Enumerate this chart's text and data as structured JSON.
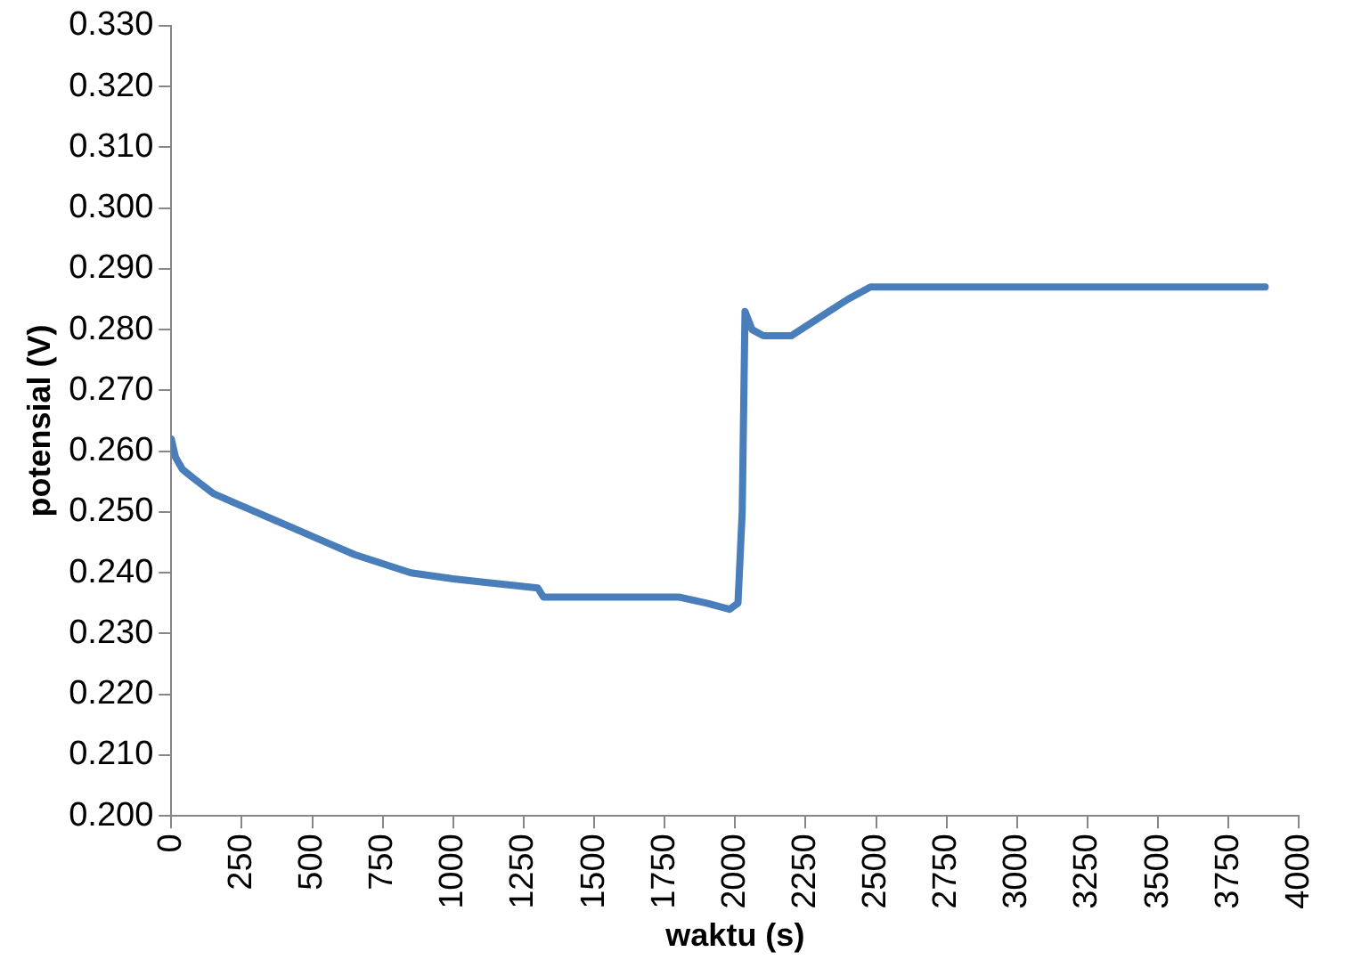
{
  "chart_data": {
    "type": "line",
    "xlabel": "waktu (s)",
    "ylabel": "potensial (V)",
    "series": [
      {
        "color": "#4a7ebb",
        "x": [
          0,
          15,
          40,
          80,
          150,
          250,
          350,
          450,
          550,
          650,
          750,
          850,
          1000,
          1100,
          1300,
          1320,
          1800,
          1900,
          1980,
          2010,
          2025,
          2035,
          2060,
          2100,
          2200,
          2300,
          2400,
          2480,
          3880
        ],
        "values": [
          0.262,
          0.259,
          0.257,
          0.2555,
          0.253,
          0.251,
          0.249,
          0.247,
          0.245,
          0.243,
          0.2415,
          0.24,
          0.239,
          0.2385,
          0.2375,
          0.236,
          0.236,
          0.235,
          0.234,
          0.235,
          0.25,
          0.283,
          0.28,
          0.279,
          0.279,
          0.282,
          0.285,
          0.287,
          0.287
        ]
      }
    ],
    "xlim": [
      0,
      4000
    ],
    "xticks": [
      0,
      250,
      500,
      750,
      1000,
      1250,
      1500,
      1750,
      2000,
      2250,
      2500,
      2750,
      3000,
      3250,
      3500,
      3750,
      4000
    ],
    "ylim": [
      0.2,
      0.33
    ],
    "yticks": [
      {
        "value": 0.2,
        "label": "0.200"
      },
      {
        "value": 0.21,
        "label": "0.210"
      },
      {
        "value": 0.22,
        "label": "0.220"
      },
      {
        "value": 0.23,
        "label": "0.230"
      },
      {
        "value": 0.24,
        "label": "0.240"
      },
      {
        "value": 0.25,
        "label": "0.250"
      },
      {
        "value": 0.26,
        "label": "0.260"
      },
      {
        "value": 0.27,
        "label": "0.270"
      },
      {
        "value": 0.28,
        "label": "0.280"
      },
      {
        "value": 0.29,
        "label": "0.290"
      },
      {
        "value": 0.3,
        "label": "0.300"
      },
      {
        "value": 0.31,
        "label": "0.310"
      },
      {
        "value": 0.32,
        "label": "0.320"
      },
      {
        "value": 0.33,
        "label": "0.330"
      }
    ],
    "grid": false,
    "legend": false,
    "marker": "none",
    "line_style": "solid"
  }
}
